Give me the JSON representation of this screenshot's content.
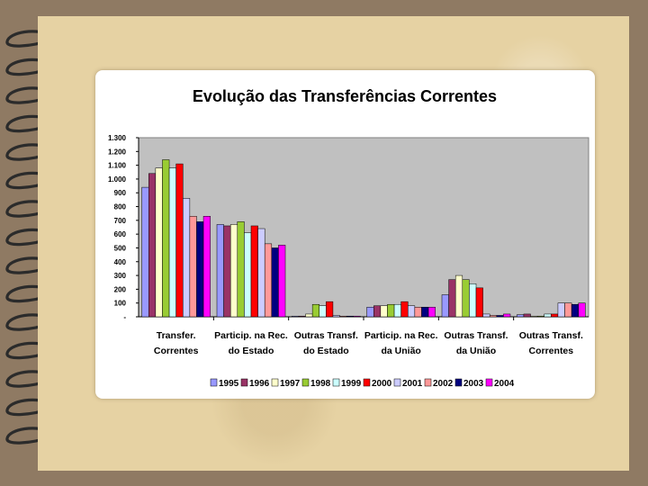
{
  "chart_data": {
    "type": "bar",
    "title": "Evolução das Transferências Correntes",
    "xlabel": "",
    "ylabel": "",
    "ylim": [
      0,
      1300
    ],
    "yticks": [
      {
        "value": 0,
        "label": "-"
      },
      {
        "value": 100,
        "label": "100"
      },
      {
        "value": 200,
        "label": "200"
      },
      {
        "value": 300,
        "label": "300"
      },
      {
        "value": 400,
        "label": "400"
      },
      {
        "value": 500,
        "label": "500"
      },
      {
        "value": 600,
        "label": "600"
      },
      {
        "value": 700,
        "label": "700"
      },
      {
        "value": 800,
        "label": "800"
      },
      {
        "value": 900,
        "label": "900"
      },
      {
        "value": 1000,
        "label": "1.000"
      },
      {
        "value": 1100,
        "label": "1.100"
      },
      {
        "value": 1200,
        "label": "1.200"
      },
      {
        "value": 1300,
        "label": "1.300"
      }
    ],
    "categories": [
      [
        "Transfer.",
        "Correntes"
      ],
      [
        "Particip. na Rec.",
        "do Estado"
      ],
      [
        "Outras Transf.",
        "do Estado"
      ],
      [
        "Particip. na Rec.",
        "da União"
      ],
      [
        "Outras Transf.",
        "da União"
      ],
      [
        "Outras Transf.",
        "Correntes"
      ]
    ],
    "grid": false,
    "plot_background": "#c0c0c0",
    "legend_position": "bottom",
    "series": [
      {
        "name": "1995",
        "color": "#9999ff",
        "values": [
          940,
          670,
          5,
          70,
          160,
          15
        ]
      },
      {
        "name": "1996",
        "color": "#993366",
        "values": [
          1040,
          660,
          5,
          80,
          270,
          20
        ]
      },
      {
        "name": "1997",
        "color": "#ffffcc",
        "values": [
          1080,
          670,
          20,
          80,
          300,
          5
        ]
      },
      {
        "name": "1998",
        "color": "#99cc33",
        "values": [
          1140,
          690,
          90,
          90,
          270,
          5
        ]
      },
      {
        "name": "1999",
        "color": "#ccffff",
        "values": [
          1080,
          610,
          80,
          90,
          240,
          20
        ]
      },
      {
        "name": "2000",
        "color": "#ff0000",
        "values": [
          1110,
          660,
          110,
          110,
          210,
          20
        ]
      },
      {
        "name": "2001",
        "color": "#ccccff",
        "values": [
          860,
          640,
          10,
          80,
          20,
          100
        ]
      },
      {
        "name": "2002",
        "color": "#ff9999",
        "values": [
          730,
          530,
          5,
          70,
          10,
          100
        ]
      },
      {
        "name": "2003",
        "color": "#000080",
        "values": [
          690,
          500,
          5,
          70,
          10,
          90
        ]
      },
      {
        "name": "2004",
        "color": "#ff00ff",
        "values": [
          730,
          520,
          5,
          70,
          20,
          100
        ]
      }
    ]
  }
}
